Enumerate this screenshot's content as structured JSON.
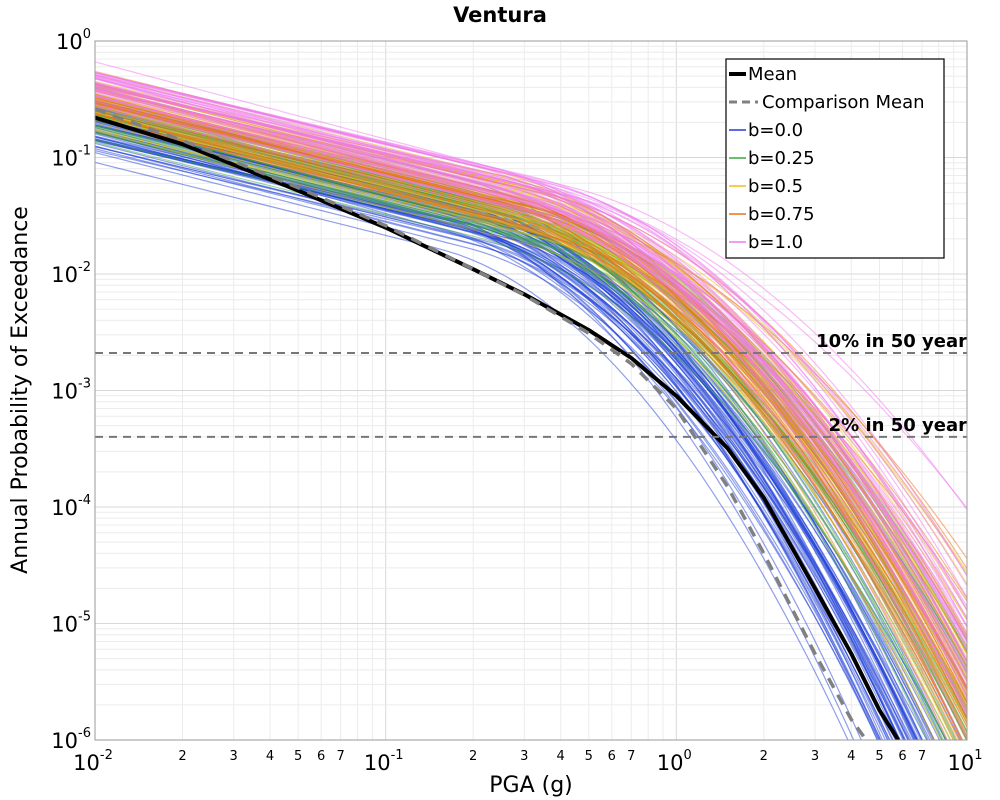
{
  "chart_data": {
    "type": "line",
    "title": "Ventura",
    "xlabel": "PGA (g)",
    "ylabel": "Annual Probability of Exceedance",
    "x_scale": "log",
    "y_scale": "log",
    "xlim": [
      0.01,
      10
    ],
    "ylim": [
      1e-06,
      1
    ],
    "x_tick_decades": [
      {
        "base": "10",
        "exp": "-2"
      },
      {
        "base": "10",
        "exp": "-1"
      },
      {
        "base": "10",
        "exp": "0"
      },
      {
        "base": "10",
        "exp": "1"
      }
    ],
    "y_tick_decades": [
      {
        "base": "10",
        "exp": "-6"
      },
      {
        "base": "10",
        "exp": "-5"
      },
      {
        "base": "10",
        "exp": "-4"
      },
      {
        "base": "10",
        "exp": "-3"
      },
      {
        "base": "10",
        "exp": "-2"
      },
      {
        "base": "10",
        "exp": "-1"
      },
      {
        "base": "10",
        "exp": "0"
      }
    ],
    "x_minor_labels": [
      "2",
      "3",
      "4",
      "5",
      "6",
      "7"
    ],
    "grid": true,
    "legend_position": "top-right",
    "series": [
      {
        "name": "Mean",
        "style": "solid",
        "color": "#000000",
        "x": [
          0.01,
          0.02,
          0.05,
          0.1,
          0.2,
          0.3,
          0.5,
          0.7,
          1.0,
          1.5,
          2.0,
          3.0,
          4.0,
          5.0,
          5.8
        ],
        "y": [
          0.22,
          0.13,
          0.052,
          0.025,
          0.011,
          0.0067,
          0.0033,
          0.0019,
          0.0009,
          0.00032,
          0.00012,
          2e-05,
          5.5e-06,
          1.8e-06,
          1e-06
        ]
      },
      {
        "name": "Comparison Mean",
        "style": "dashed",
        "color": "#808080",
        "x": [
          0.01,
          0.02,
          0.05,
          0.1,
          0.2,
          0.3,
          0.5,
          0.7,
          1.0,
          1.5,
          2.0,
          3.0,
          4.0,
          4.5
        ],
        "y": [
          0.26,
          0.14,
          0.055,
          0.026,
          0.011,
          0.0066,
          0.0031,
          0.0017,
          0.0007,
          0.00015,
          4e-05,
          5.5e-06,
          1.5e-06,
          1e-06
        ]
      },
      {
        "name": "b=0.0",
        "style": "band",
        "color": "#1f3fd8"
      },
      {
        "name": "b=0.25",
        "style": "band",
        "color": "#3aa83a"
      },
      {
        "name": "b=0.5",
        "style": "band",
        "color": "#e8c21a"
      },
      {
        "name": "b=0.75",
        "style": "band",
        "color": "#e8731a"
      },
      {
        "name": "b=1.0",
        "style": "band",
        "color": "#f07af0"
      }
    ],
    "annotations": [
      {
        "label": "10% in 50 year",
        "y": 0.0021
      },
      {
        "label": "2% in 50 year",
        "y": 0.0004
      }
    ]
  }
}
